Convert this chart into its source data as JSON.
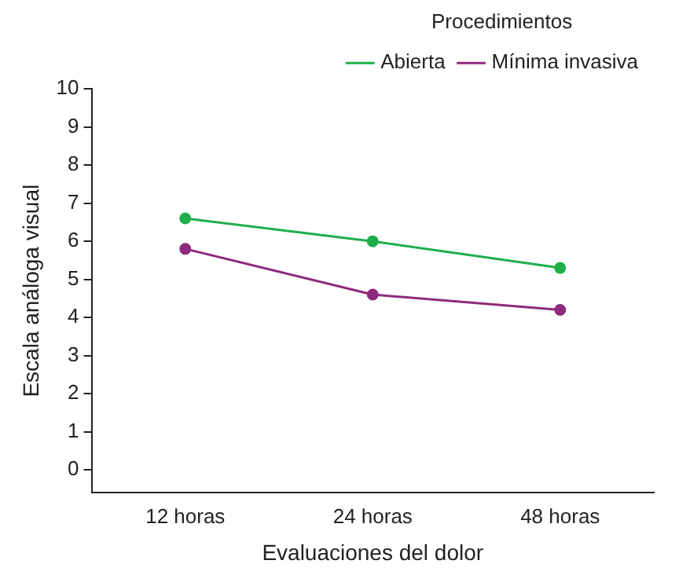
{
  "chart_data": {
    "type": "line",
    "xlabel": "Evaluaciones del dolor",
    "ylabel": "Escala análoga visual",
    "legend_title": "Procedimientos",
    "categories": [
      "12 horas",
      "24 horas",
      "48 horas"
    ],
    "series": [
      {
        "name": "Abierta",
        "color": "#1fae4b",
        "values": [
          6.6,
          6.0,
          5.3
        ]
      },
      {
        "name": "Mínima invasiva",
        "color": "#8e2a7e",
        "values": [
          5.8,
          4.6,
          4.2
        ]
      }
    ],
    "ylim": [
      -0.6,
      10
    ],
    "yticks": [
      0,
      1,
      2,
      3,
      4,
      5,
      6,
      7,
      8,
      9,
      10
    ],
    "grid": false,
    "legend": "top right",
    "marker": "circle",
    "line_style": "solid"
  }
}
